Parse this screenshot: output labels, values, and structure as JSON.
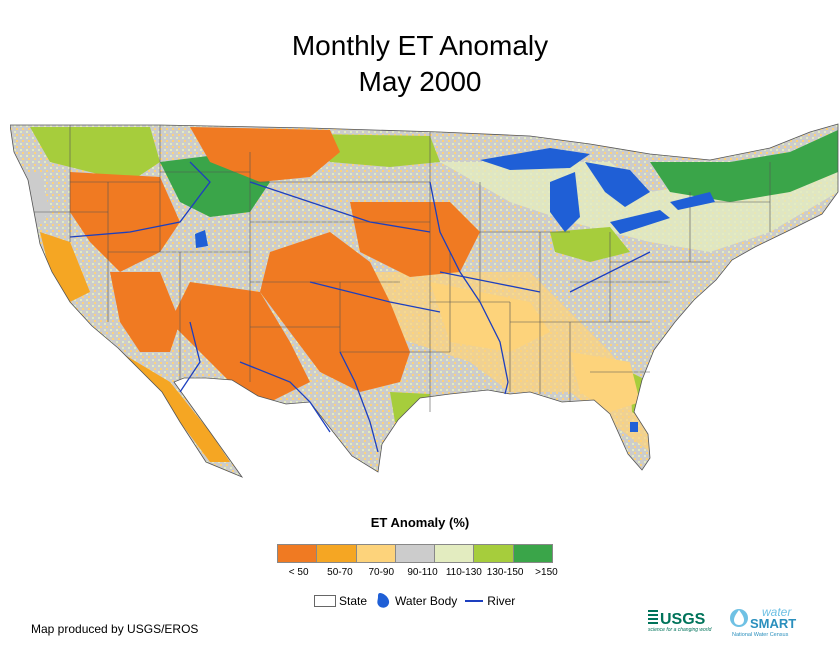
{
  "title": {
    "line1": "Monthly ET Anomaly",
    "line2": "May 2000"
  },
  "legend": {
    "title": "ET Anomaly (%)",
    "bins": [
      {
        "label": "< 50",
        "color": "#f07a22"
      },
      {
        "label": "50-70",
        "color": "#f5a623"
      },
      {
        "label": "70-90",
        "color": "#fdd37b"
      },
      {
        "label": "90-110",
        "color": "#cccccc"
      },
      {
        "label": "110-130",
        "color": "#e3ecc0"
      },
      {
        "label": "130-150",
        "color": "#a6cd3c"
      },
      {
        "label": ">150",
        "color": "#3aa549"
      }
    ],
    "keys": {
      "state": "State",
      "water_body": "Water Body",
      "river": "River"
    }
  },
  "credit": "Map produced by USGS/EROS",
  "logos": {
    "usgs": "USGS",
    "usgs_tagline": "science for a changing world",
    "water": "water",
    "smart": "SMART",
    "smart_tagline": "National Water Census"
  },
  "colors": {
    "water": "#1f5fd6",
    "river": "#1d3fbf",
    "state_border": "#555555",
    "usgs_green": "#00735a",
    "watersmart_blue": "#2a8fbd"
  }
}
